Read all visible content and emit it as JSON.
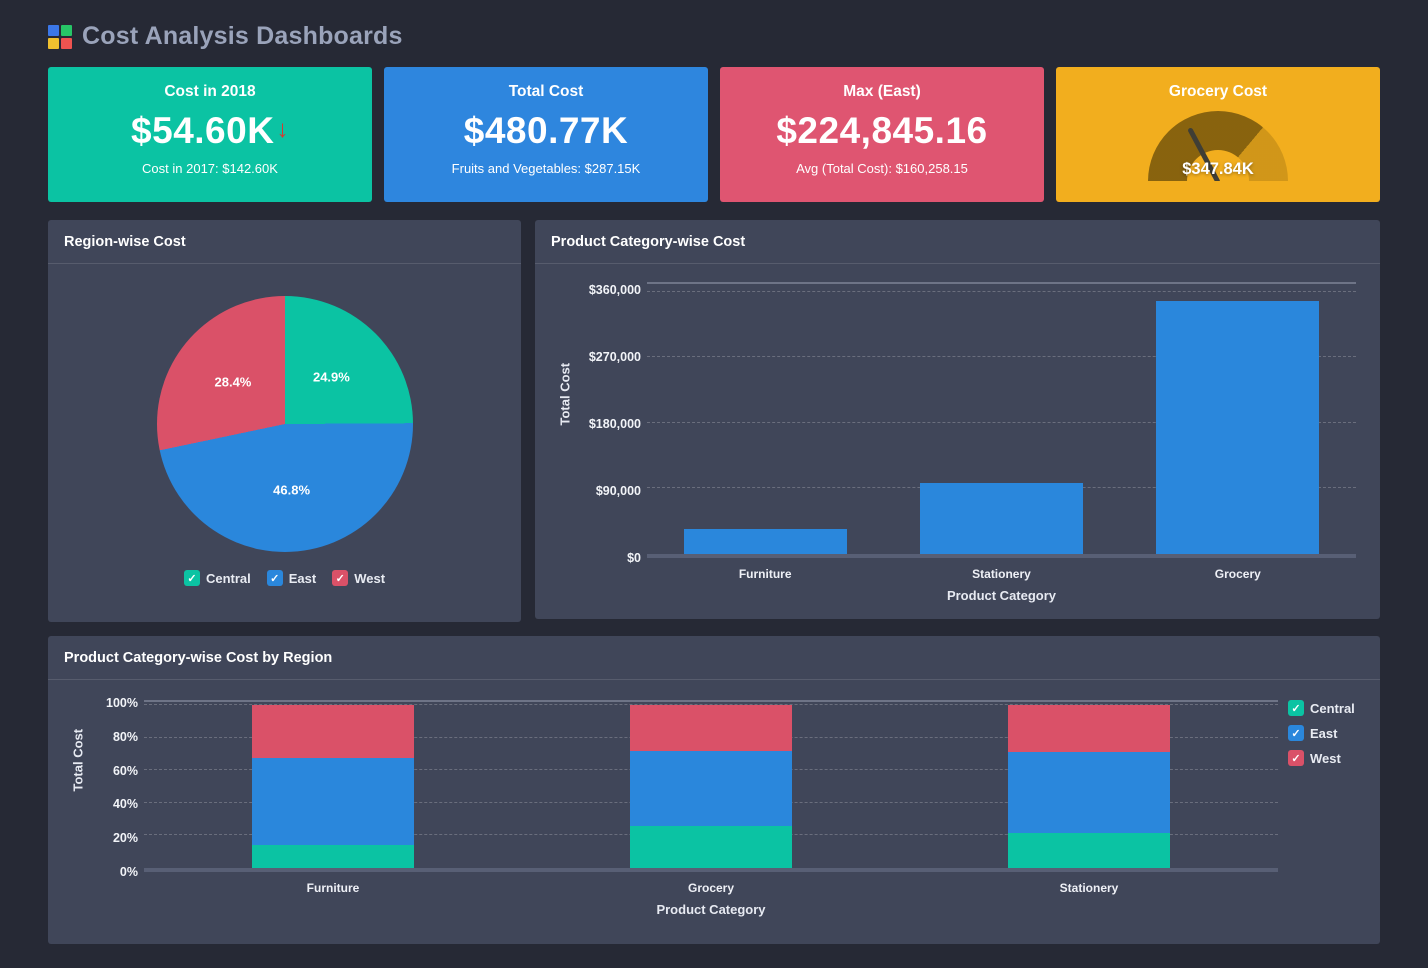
{
  "header": {
    "title": "Cost Analysis Dashboards",
    "logo_colors": [
      "#3b77e8",
      "#27c567",
      "#f0c02f",
      "#ef5350"
    ]
  },
  "kpi_cards": [
    {
      "title": "Cost in 2018",
      "value": "$54.60K",
      "trend": "down",
      "trend_icon": "↓",
      "subtitle": "Cost in 2017: $142.60K",
      "color": "#0bc3a3"
    },
    {
      "title": "Total Cost",
      "value": "$480.77K",
      "subtitle": "Fruits and Vegetables: $287.15K",
      "color": "#2e86de"
    },
    {
      "title": "Max (East)",
      "value": "$224,845.16",
      "subtitle": "Avg (Total Cost): $160,258.15",
      "color": "#df5571"
    },
    {
      "title": "Grocery Cost",
      "value": "$347.84K",
      "color": "#f2ae1e",
      "gauge": {
        "fill_deg": 130,
        "track_deg": 180,
        "needle_rotation_deg": -28,
        "fill_color": "rgba(40,30,0,0.52)",
        "track_color": "rgba(60,44,0,0.18)"
      }
    }
  ],
  "chart_data": [
    {
      "id": "region_pie",
      "type": "pie",
      "title": "Region-wise Cost",
      "labels": [
        "Central",
        "East",
        "West"
      ],
      "values": [
        24.9,
        46.8,
        28.4
      ],
      "value_labels": [
        "24.9%",
        "46.8%",
        "28.4%"
      ],
      "colors": [
        "#0bc3a3",
        "#2a87dc",
        "#da5168"
      ],
      "legend": [
        "Central",
        "East",
        "West"
      ],
      "legend_position": "bottom",
      "start_angle_deg": 0,
      "check_glyph": "✓"
    },
    {
      "id": "category_bar",
      "type": "bar",
      "title": "Product Category-wise Cost",
      "categories": [
        "Furniture",
        "Stationery",
        "Grocery"
      ],
      "values": [
        35000,
        97000,
        347840
      ],
      "bar_color": "#2a87dc",
      "xlabel": "Product Category",
      "ylabel": "Total Cost",
      "ylim": [
        0,
        360000
      ],
      "yticks": [
        "$0",
        "$90,000",
        "$180,000",
        "$270,000",
        "$360,000"
      ],
      "grid": "dashed"
    },
    {
      "id": "stacked_bar",
      "type": "stacked_bar_percent",
      "title": "Product Category-wise Cost by Region",
      "categories": [
        "Furniture",
        "Grocery",
        "Stationery"
      ],
      "series": [
        {
          "name": "Central",
          "color": "#0bc3a3",
          "values": [
            14.3,
            25.7,
            21.7
          ]
        },
        {
          "name": "East",
          "color": "#2a87dc",
          "values": [
            53.0,
            46.2,
            49.6
          ]
        },
        {
          "name": "West",
          "color": "#da5168",
          "values": [
            32.7,
            28.1,
            28.7
          ]
        }
      ],
      "xlabel": "Product Category",
      "ylabel": "Total Cost",
      "ylim": [
        0,
        100
      ],
      "yticks": [
        "0%",
        "20%",
        "40%",
        "60%",
        "80%",
        "100%"
      ],
      "legend": [
        "Central",
        "East",
        "West"
      ],
      "legend_position": "right",
      "grid": "dashed",
      "check_glyph": "✓"
    }
  ]
}
